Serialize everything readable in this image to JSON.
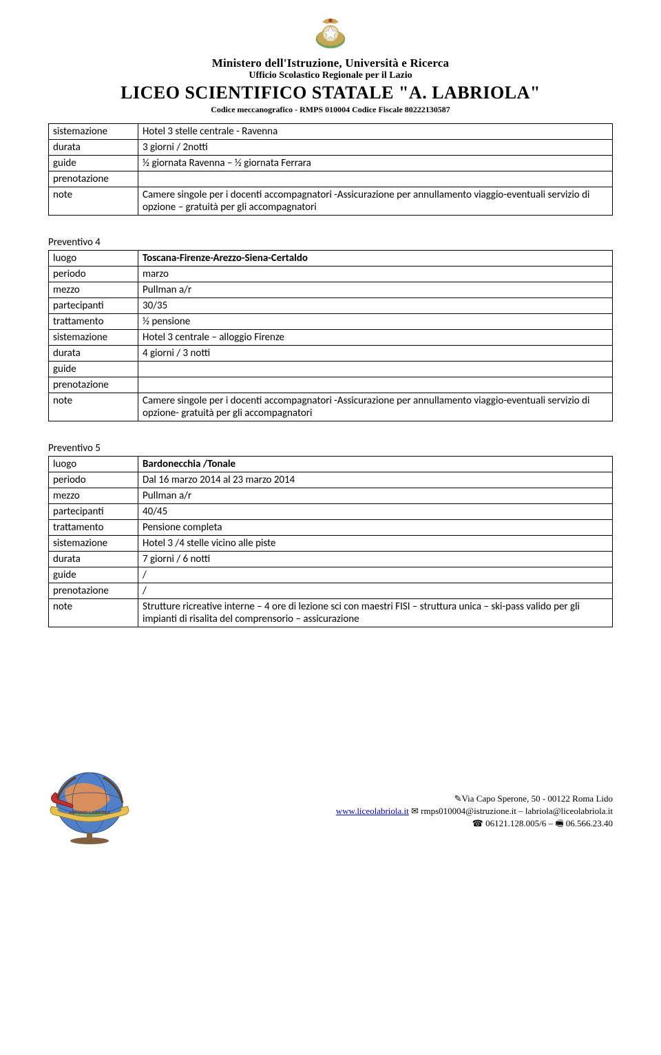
{
  "header": {
    "ministry": "Ministero dell'Istruzione, Università e Ricerca",
    "ufficio": "Ufficio Scolastico Regionale per il Lazio",
    "school": "LICEO SCIENTIFICO STATALE \"A. LABRIOLA\"",
    "codice": "Codice meccanografico - RMPS 010004   Codice Fiscale 80222130587"
  },
  "tables": [
    {
      "title": null,
      "rows": [
        {
          "label": "sistemazione",
          "value": "Hotel 3 stelle centrale - Ravenna"
        },
        {
          "label": "durata",
          "value": "3 giorni / 2notti"
        },
        {
          "label": "guide",
          "value": "½  giornata Ravenna – ½ giornata Ferrara"
        },
        {
          "label": "prenotazione",
          "value": ""
        },
        {
          "label": "note",
          "value": "Camere singole per i docenti accompagnatori -Assicurazione per annullamento viaggio-eventuali servizio di opzione – gratuità per gli accompagnatori"
        }
      ]
    },
    {
      "title": "Preventivo  4",
      "rows": [
        {
          "label": "luogo",
          "value": "Toscana-Firenze-Arezzo-Siena-Certaldo",
          "bold": true
        },
        {
          "label": "periodo",
          "value": "marzo"
        },
        {
          "label": "mezzo",
          "value": "Pullman a/r"
        },
        {
          "label": "partecipanti",
          "value": "30/35"
        },
        {
          "label": "trattamento",
          "value": "½ pensione"
        },
        {
          "label": "sistemazione",
          "value": "Hotel 3 centrale – alloggio Firenze"
        },
        {
          "label": "durata",
          "value": "4 giorni / 3 notti"
        },
        {
          "label": "guide",
          "value": ""
        },
        {
          "label": "prenotazione",
          "value": ""
        },
        {
          "label": "note",
          "value": "Camere singole per i docenti accompagnatori -Assicurazione per annullamento viaggio-eventuali servizio di opzione- gratuità per gli accompagnatori"
        }
      ]
    },
    {
      "title": "Preventivo 5",
      "rows": [
        {
          "label": "luogo",
          "value": "Bardonecchia /Tonale",
          "bold": true
        },
        {
          "label": "periodo",
          "value": "Dal 16 marzo 2014 al 23 marzo 2014"
        },
        {
          "label": "mezzo",
          "value": "Pullman a/r"
        },
        {
          "label": "partecipanti",
          "value": "40/45"
        },
        {
          "label": "trattamento",
          "value": "Pensione completa"
        },
        {
          "label": "sistemazione",
          "value": "Hotel 3 /4 stelle vicino alle piste"
        },
        {
          "label": "durata",
          "value": "7 giorni / 6 notti"
        },
        {
          "label": "guide",
          "value": "/"
        },
        {
          "label": "prenotazione",
          "value": "/"
        },
        {
          "label": "note",
          "value": "Strutture ricreative interne – 4 ore di lezione sci con maestri FISI – struttura unica – ski-pass valido per gli impianti di risalita del comprensorio – assicurazione"
        }
      ]
    }
  ],
  "footer": {
    "address": "✎Via Capo Sperone, 50 - 00122 Roma Lido",
    "web": "www.liceolabriola.it",
    "email_sep": "  ✉ ",
    "email": "rmps010004@istruzione.it – labriola@liceolabriola.it",
    "phone": "☎ 06121.128.005/6 – 🖷 06.566.23.40"
  },
  "colors": {
    "text": "#000000",
    "link": "#0000cc",
    "border": "#000000",
    "emblem_gold": "#c9a855",
    "emblem_green": "#5a8a3a",
    "emblem_red": "#b04030",
    "globe_blue": "#5080c8",
    "globe_orange": "#e89050",
    "banner_red": "#c03030",
    "banner_yellow": "#e8c050"
  }
}
